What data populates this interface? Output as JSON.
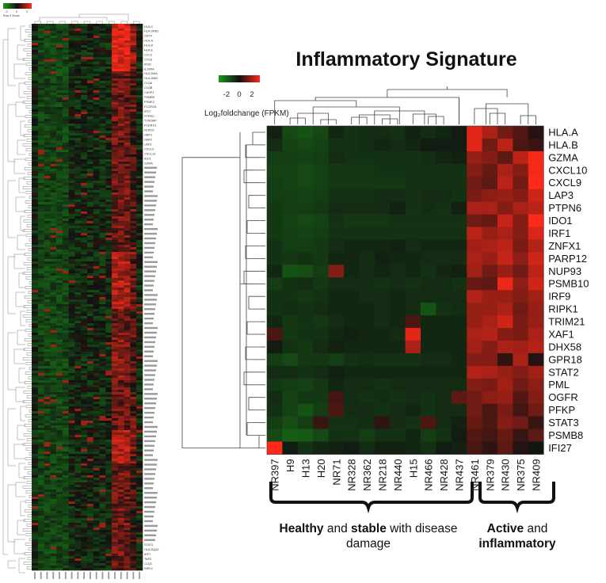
{
  "chart_data": [
    {
      "type": "heatmap",
      "title": "Inflammatory Signature",
      "legend_title": "Log₂foldchange (FPKM)",
      "legend_ticks": [
        "-2",
        "0",
        "2"
      ],
      "colors": {
        "low": "#1a9a1a",
        "mid": "#111111",
        "high": "#ff2a1a"
      },
      "color_range": [
        -2.5,
        2.5
      ],
      "columns": [
        "NR397",
        "H9",
        "H13",
        "H20",
        "NR71",
        "NR328",
        "NR362",
        "NR218",
        "NR440",
        "H15",
        "NR466",
        "NR428",
        "NR437",
        "NR461",
        "NR379",
        "NR430",
        "NR375",
        "NR409"
      ],
      "rows": [
        "HLA.A",
        "HLA.B",
        "GZMA",
        "CXCL10",
        "CXCL9",
        "LAP3",
        "PTPN6",
        "IDO1",
        "IRF1",
        "ZNFX1",
        "PARP12",
        "NUP93",
        "PSMB10",
        "IRF9",
        "RIPK1",
        "TRIM21",
        "XAF1",
        "DHX58",
        "GPR18",
        "STAT2",
        "PML",
        "OGFR",
        "PFKP",
        "STAT3",
        "PSMB8",
        "IFI27"
      ],
      "values": [
        [
          -0.3,
          -1.0,
          -1.2,
          -1.0,
          -0.4,
          -0.6,
          -0.5,
          -0.5,
          -0.6,
          -0.3,
          -0.5,
          -0.4,
          -0.2,
          2.2,
          1.6,
          1.0,
          0.7,
          0.2
        ],
        [
          -0.5,
          -0.9,
          -1.0,
          -0.9,
          -0.6,
          -0.6,
          -0.5,
          -0.4,
          -0.5,
          -0.4,
          -0.2,
          -0.2,
          -0.2,
          2.2,
          1.0,
          1.8,
          0.6,
          0.4
        ],
        [
          -0.8,
          -0.8,
          -0.9,
          -0.8,
          -0.5,
          -0.6,
          -0.6,
          -0.6,
          -0.6,
          -0.6,
          -0.5,
          -0.4,
          -0.3,
          1.4,
          1.2,
          0.8,
          1.8,
          2.4
        ],
        [
          -0.9,
          -0.9,
          -1.0,
          -0.9,
          -0.7,
          -0.7,
          -0.7,
          -0.6,
          -0.6,
          -0.6,
          -0.6,
          -0.6,
          -0.6,
          1.2,
          0.9,
          1.6,
          1.2,
          2.4
        ],
        [
          -0.8,
          -0.9,
          -1.0,
          -0.9,
          -0.7,
          -0.7,
          -0.7,
          -0.7,
          -0.7,
          -0.6,
          -0.6,
          -0.6,
          -0.6,
          1.0,
          0.8,
          1.8,
          1.0,
          2.5
        ],
        [
          -0.8,
          -0.8,
          -0.9,
          -0.8,
          -0.6,
          -0.6,
          -0.6,
          -0.5,
          -0.5,
          -0.6,
          -0.5,
          -0.5,
          -0.6,
          1.1,
          1.3,
          1.4,
          1.2,
          2.0
        ],
        [
          -0.7,
          -0.8,
          -0.8,
          -0.7,
          -0.5,
          -0.5,
          -0.5,
          -0.5,
          -0.3,
          -0.6,
          -0.5,
          -0.6,
          -0.3,
          1.6,
          1.6,
          1.2,
          1.6,
          1.8
        ],
        [
          -0.7,
          -0.9,
          -1.0,
          -0.9,
          -0.6,
          -0.7,
          -0.7,
          -0.7,
          -0.6,
          -0.6,
          -0.6,
          -0.6,
          -0.6,
          1.0,
          0.9,
          1.9,
          1.2,
          2.5
        ],
        [
          -0.7,
          -0.8,
          -0.9,
          -0.8,
          -0.6,
          -0.6,
          -0.6,
          -0.6,
          -0.6,
          -0.6,
          -0.6,
          -0.6,
          -0.6,
          1.8,
          1.4,
          1.6,
          1.2,
          2.1
        ],
        [
          -0.6,
          -0.8,
          -0.8,
          -0.7,
          -0.5,
          -0.4,
          -0.4,
          -0.4,
          -0.3,
          -0.5,
          -0.4,
          -0.4,
          -0.4,
          1.5,
          1.6,
          1.8,
          1.1,
          1.7
        ],
        [
          -0.6,
          -0.7,
          -0.6,
          -0.7,
          -0.4,
          -0.4,
          -0.5,
          -0.3,
          -0.4,
          -0.4,
          -0.5,
          -0.5,
          -0.5,
          1.6,
          1.4,
          1.9,
          1.3,
          2.0
        ],
        [
          -0.4,
          -1.2,
          -1.1,
          -0.8,
          1.2,
          -0.4,
          -0.5,
          -0.4,
          -0.5,
          -0.4,
          -0.6,
          -0.4,
          -0.3,
          1.5,
          1.0,
          1.4,
          1.0,
          1.8
        ],
        [
          -0.8,
          -0.6,
          -0.5,
          -0.7,
          -0.5,
          -0.5,
          -0.5,
          -0.6,
          -0.5,
          -0.6,
          -0.5,
          -0.5,
          -0.6,
          0.9,
          0.8,
          2.3,
          1.3,
          2.0
        ],
        [
          -0.6,
          -0.6,
          -0.7,
          -0.6,
          -0.4,
          -0.4,
          -0.5,
          -0.5,
          -0.4,
          -0.5,
          -0.5,
          -0.5,
          -0.5,
          1.7,
          1.4,
          1.4,
          1.2,
          1.5
        ],
        [
          -0.6,
          -0.5,
          -0.6,
          -0.5,
          -0.4,
          -0.4,
          -0.4,
          -0.5,
          -0.4,
          -0.5,
          -1.2,
          -0.6,
          -0.5,
          1.4,
          1.4,
          1.6,
          1.0,
          1.4
        ],
        [
          -0.4,
          -0.7,
          -0.6,
          -0.7,
          -0.5,
          -0.4,
          -0.4,
          -0.5,
          -0.4,
          0.6,
          -0.4,
          -0.4,
          -0.4,
          1.4,
          1.6,
          2.0,
          1.1,
          1.4
        ],
        [
          0.6,
          -0.7,
          -0.6,
          -0.6,
          -0.4,
          -0.3,
          -0.4,
          -0.4,
          -0.5,
          2.2,
          -0.4,
          -0.4,
          -0.4,
          1.6,
          1.7,
          1.2,
          1.1,
          1.6
        ],
        [
          -0.2,
          -0.6,
          -0.7,
          -0.5,
          -0.3,
          -0.4,
          -0.4,
          -0.4,
          -0.4,
          1.6,
          -0.4,
          -0.4,
          -0.4,
          1.5,
          1.2,
          1.6,
          1.5,
          1.7
        ],
        [
          -0.8,
          -1.0,
          -0.7,
          -0.7,
          -0.8,
          -0.6,
          -0.5,
          -0.6,
          -0.6,
          -0.6,
          -0.5,
          -0.5,
          -0.4,
          1.2,
          1.2,
          0.3,
          1.6,
          0.2
        ],
        [
          -0.5,
          -0.5,
          -0.6,
          -0.5,
          -0.3,
          -0.4,
          -0.4,
          -0.4,
          -0.4,
          -0.4,
          -0.4,
          -0.4,
          -0.4,
          1.7,
          1.6,
          1.4,
          1.2,
          1.5
        ],
        [
          -0.7,
          -0.8,
          -0.9,
          -0.7,
          -0.4,
          -0.5,
          -0.5,
          -0.6,
          -0.5,
          -0.5,
          -0.5,
          -0.5,
          -0.5,
          1.2,
          1.1,
          1.5,
          1.0,
          1.3
        ],
        [
          -0.5,
          -0.9,
          -0.7,
          -0.7,
          0.5,
          -0.5,
          -0.6,
          -0.5,
          -0.6,
          -0.5,
          -0.6,
          -0.5,
          0.8,
          1.0,
          1.3,
          1.4,
          0.7,
          1.2
        ],
        [
          -0.6,
          -0.9,
          -1.2,
          -0.8,
          0.6,
          -0.5,
          -0.5,
          -0.6,
          -0.5,
          -0.4,
          -0.6,
          -0.5,
          -0.5,
          1.0,
          0.6,
          1.1,
          0.5,
          1.0
        ],
        [
          -0.8,
          -1.1,
          -0.8,
          0.4,
          -0.6,
          -0.6,
          -0.5,
          0.3,
          -0.5,
          -0.6,
          0.6,
          -0.5,
          -0.3,
          0.9,
          0.6,
          1.2,
          1.0,
          0.4
        ],
        [
          -1.0,
          -1.4,
          -1.3,
          -1.0,
          -0.6,
          -0.6,
          -0.8,
          -0.6,
          -0.6,
          -0.4,
          -0.8,
          -0.6,
          -0.2,
          0.7,
          0.5,
          0.9,
          0.4,
          0.8
        ],
        [
          2.6,
          -0.2,
          -0.6,
          -0.4,
          -0.3,
          -0.2,
          -0.5,
          -0.3,
          -0.3,
          -0.4,
          -0.6,
          -0.2,
          -0.3,
          0.6,
          0.3,
          0.8,
          0.2,
          -0.1
        ]
      ]
    }
  ],
  "overview": {
    "legend_title": "Row Z Score",
    "legend_ticks": [
      "-2",
      "0",
      "2"
    ],
    "top_labels": [
      "HLA.C",
      "HLA.DRB1",
      "CD74",
      "HLA.A",
      "HLA.B",
      "HLA.E",
      "CCL5",
      "CTSS",
      "IFI30",
      "IL10RA",
      "HLA.DMA",
      "HLA.DMB",
      "C1QA",
      "C1QB",
      "CASP1",
      "PSMB9",
      "PSME2",
      "FCGR2A",
      "IFI27",
      "PTPRC",
      "TYROBP",
      "FCER1G",
      "NLRC5",
      "GBP1",
      "GBP2",
      "LAP3",
      "CXCL9",
      "CXCL10",
      "IDO1",
      "GZMA"
    ],
    "bottom_labels": [
      "STAT1",
      "HLA.DQA1",
      "IRF7",
      "TAP2",
      "C1QC",
      "RIPK1"
    ]
  },
  "groups": [
    {
      "parts": [
        {
          "t": "Healthy",
          "b": true
        },
        {
          "t": " and ",
          "b": false
        },
        {
          "t": "stable",
          "b": true
        },
        {
          "t": " with disease",
          "b": false
        }
      ],
      "line2": [
        {
          "t": "damage",
          "b": false
        }
      ]
    },
    {
      "parts": [
        {
          "t": "Active",
          "b": true
        },
        {
          "t": " and",
          "b": false
        }
      ],
      "line2": [
        {
          "t": "inflammatory",
          "b": true
        }
      ]
    }
  ]
}
